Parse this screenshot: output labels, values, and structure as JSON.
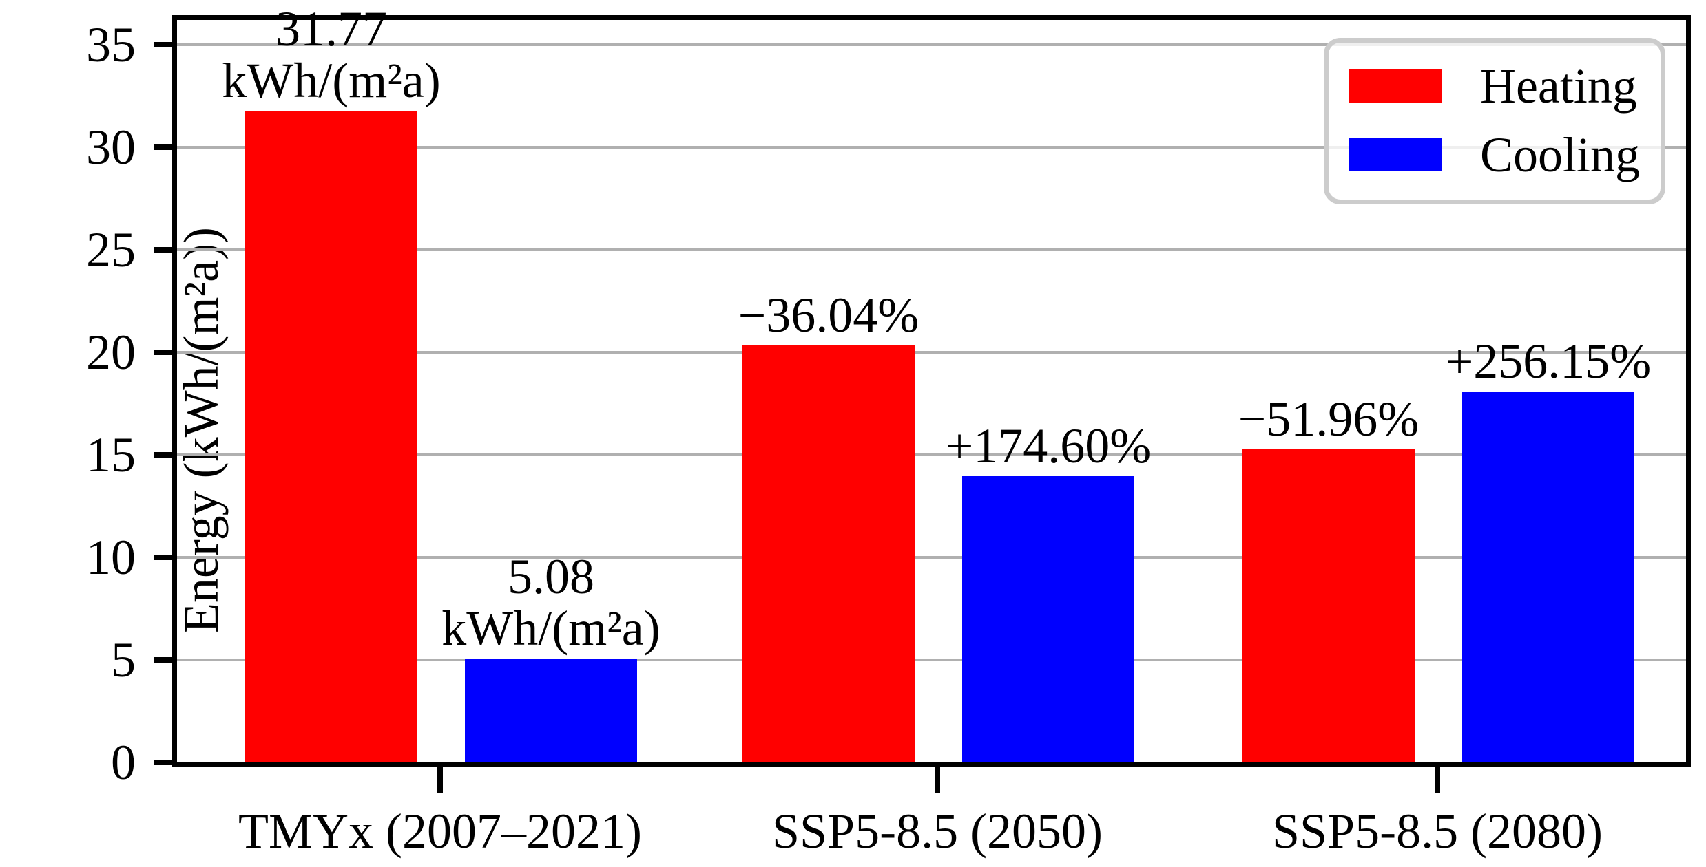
{
  "chart_data": {
    "type": "bar",
    "title": "",
    "xlabel": "",
    "ylabel": "Energy (kWh/(m²a))",
    "ylim": [
      0,
      36.6
    ],
    "yticks": [
      0,
      5,
      10,
      15,
      20,
      25,
      30,
      35
    ],
    "grid": "horizontal",
    "legend_position": "upper right",
    "categories": [
      "TMYx (2007–2021)",
      "SSP5-8.5 (2050)",
      "SSP5-8.5 (2080)"
    ],
    "series": [
      {
        "name": "Heating",
        "color": "#ff0000",
        "values": [
          31.77,
          20.32,
          15.26
        ]
      },
      {
        "name": "Cooling",
        "color": "#0000ff",
        "values": [
          5.08,
          13.95,
          18.09
        ]
      }
    ],
    "bar_labels": [
      [
        [
          "31.77",
          "kWh/(m²a)"
        ],
        [
          "−36.04%"
        ],
        [
          "−51.96%"
        ]
      ],
      [
        [
          "5.08",
          "kWh/(m²a)"
        ],
        [
          "+174.60%"
        ],
        [
          "+256.15%"
        ]
      ]
    ],
    "colors": {
      "grid": "#b0b0b0",
      "spine": "#000000",
      "legend_border": "#cccccc",
      "heating": "#ff0000",
      "cooling": "#0000ff"
    }
  }
}
